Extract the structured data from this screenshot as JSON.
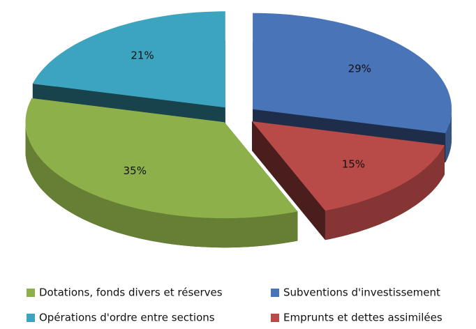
{
  "chart_data": {
    "type": "pie",
    "categories": [
      "Subventions d'investissement",
      "Emprunts et dettes assimilées",
      "Dotations, fonds divers et réserves",
      "Opérations d'ordre entre sections"
    ],
    "values": [
      29,
      15,
      35,
      21
    ],
    "value_labels": [
      "29%",
      "15%",
      "35%",
      "21%"
    ],
    "colors": [
      "#4a74b8",
      "#b84a48",
      "#8db04a",
      "#3ca4bf"
    ],
    "legend": "bottom"
  }
}
